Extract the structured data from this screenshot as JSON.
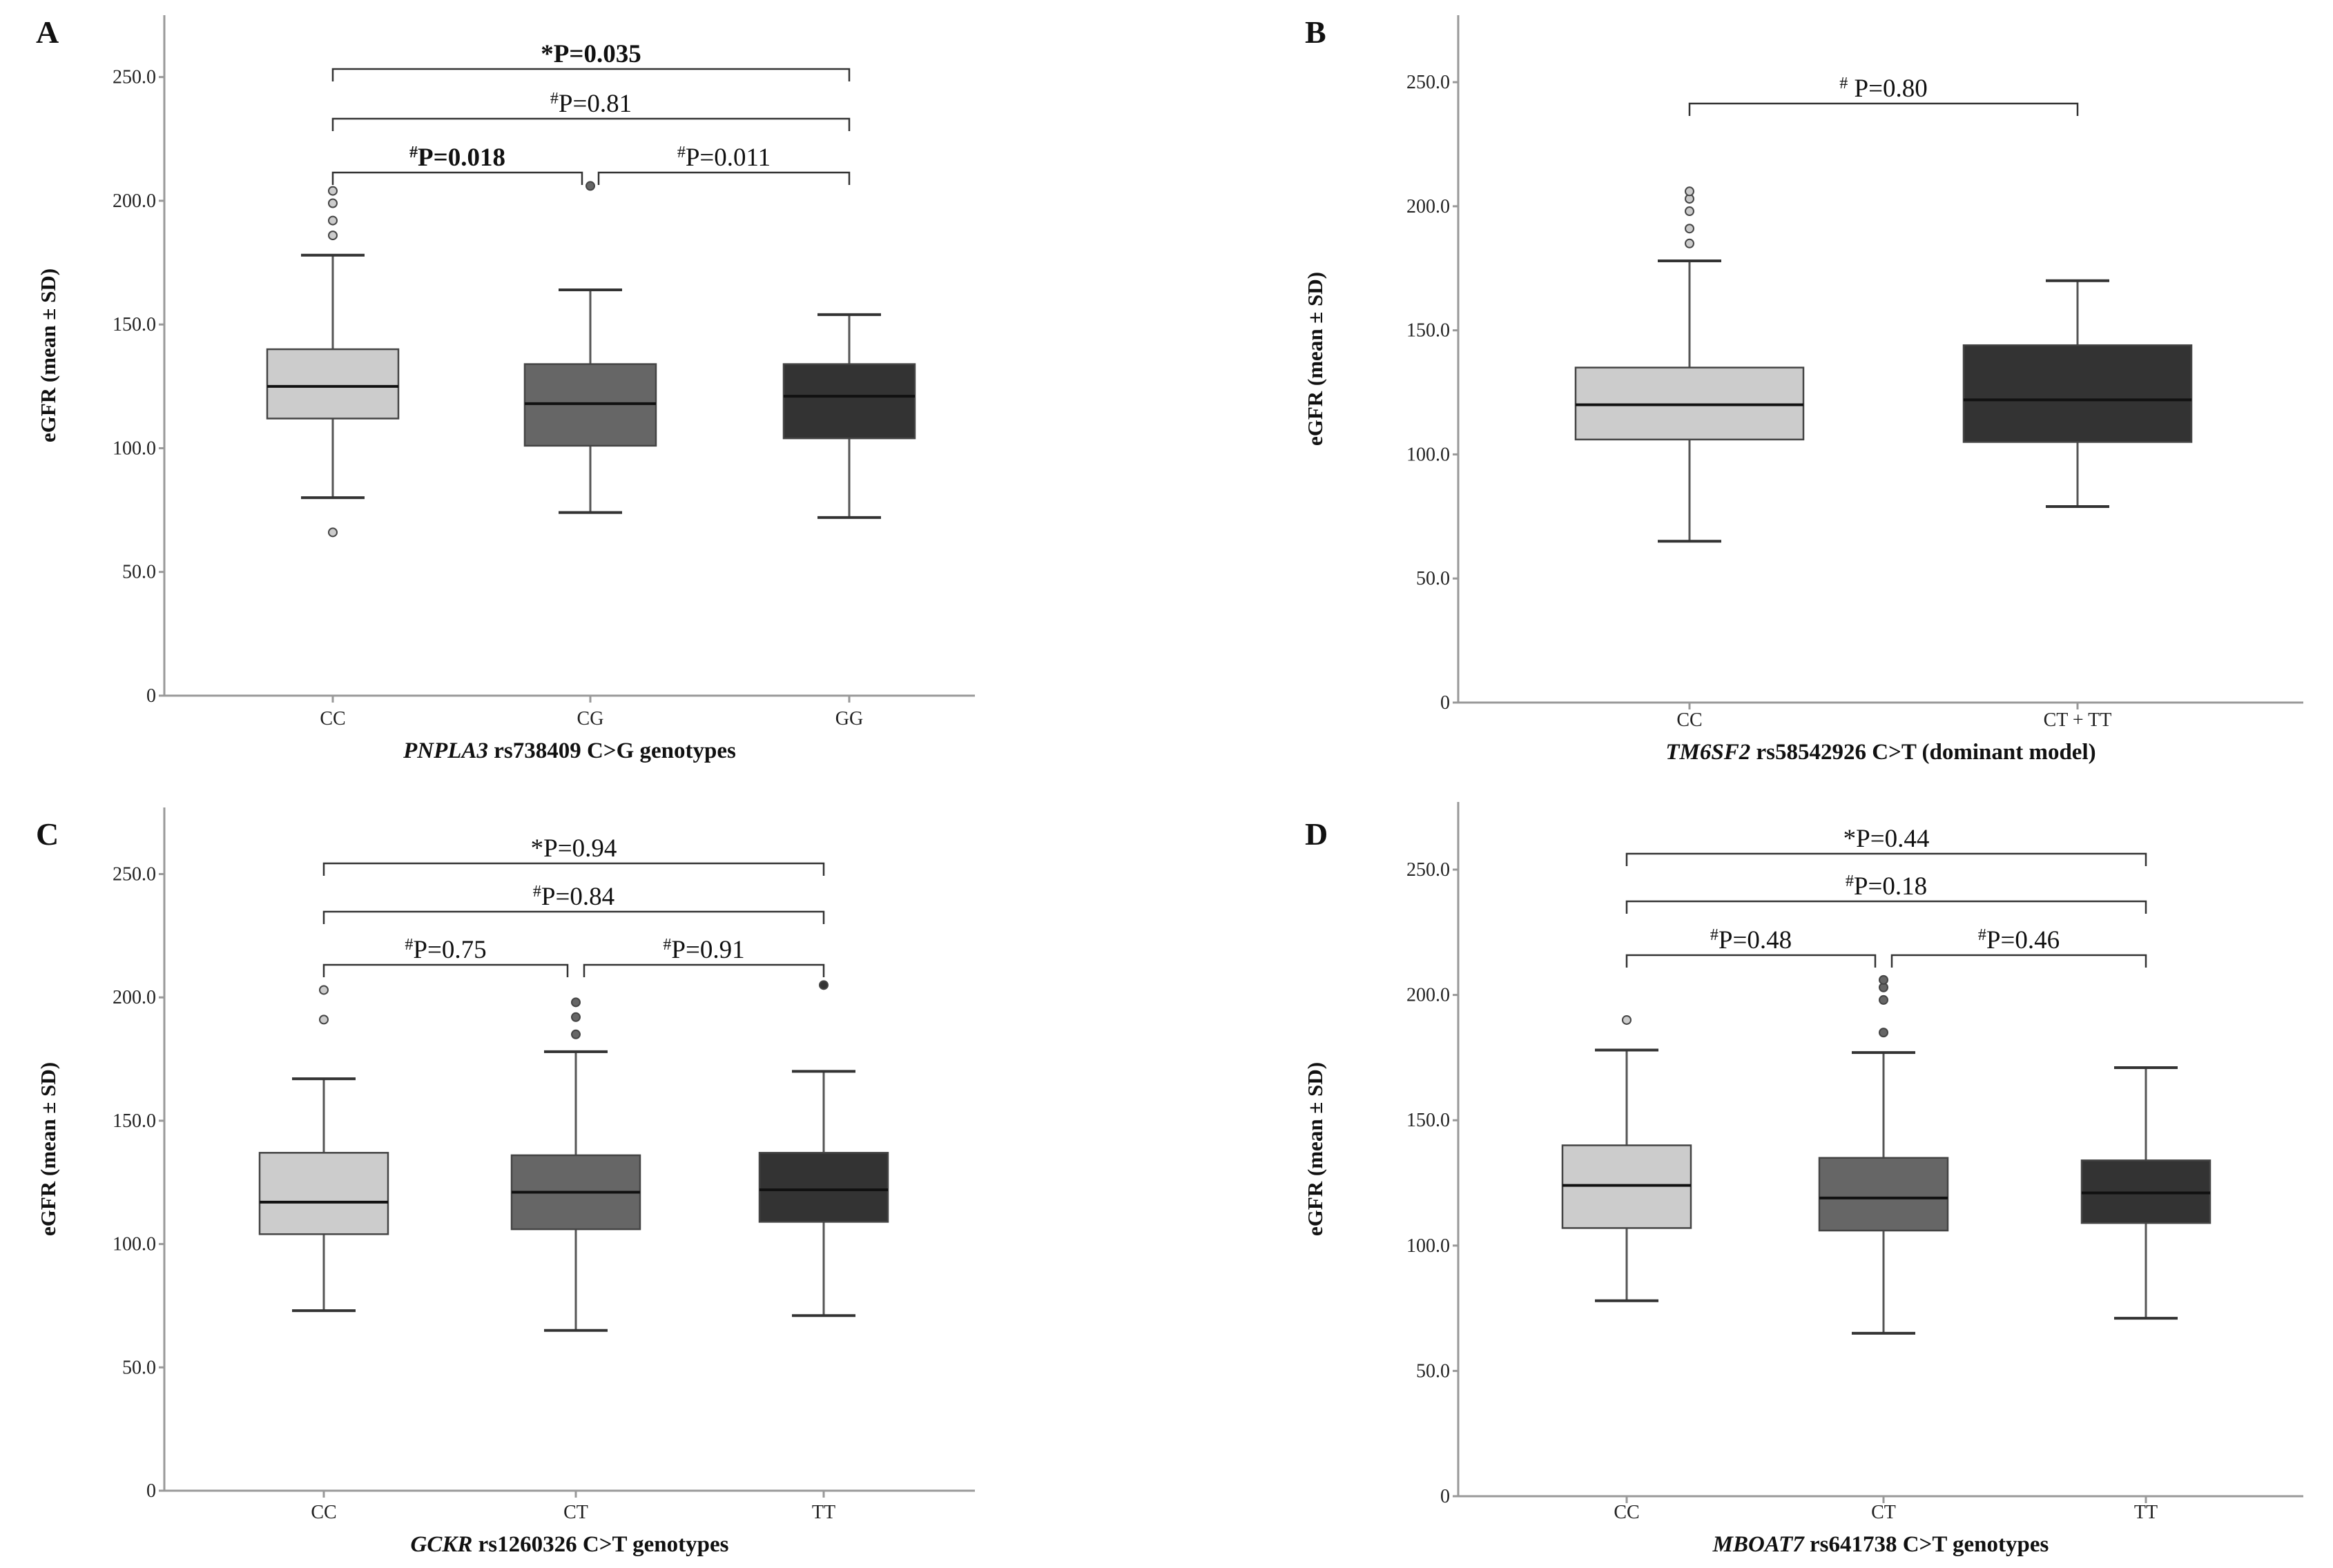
{
  "chart_data": [
    {
      "panel": "A",
      "type": "box",
      "xlabel_italic": "PNPLA3",
      "xlabel_rest": " rs738409 C>G genotypes",
      "ylabel": "eGFR (mean ± SD)",
      "ylim": [
        0,
        275
      ],
      "yticks": [
        0,
        50.0,
        100.0,
        150.0,
        200.0,
        250.0
      ],
      "ytick_labels": [
        "0",
        "50.0",
        "100.0",
        "150.0",
        "200.0",
        "250.0"
      ],
      "categories": [
        "CC",
        "CG",
        "GG"
      ],
      "boxes": [
        {
          "whisker_low": 80,
          "q1": 112,
          "median": 125,
          "q3": 140,
          "whisker_high": 178,
          "outliers": [
            66,
            186,
            192,
            199,
            204
          ],
          "color": "#cccccc"
        },
        {
          "whisker_low": 74,
          "q1": 101,
          "median": 118,
          "q3": 134,
          "whisker_high": 164,
          "outliers": [
            206
          ],
          "color": "#666666"
        },
        {
          "whisker_low": 72,
          "q1": 104,
          "median": 121,
          "q3": 134,
          "whisker_high": 154,
          "outliers": [],
          "color": "#333333"
        }
      ],
      "comparisons": [
        {
          "from": 0,
          "to": 2,
          "symbol": "*",
          "label": "P=0.035",
          "bold": true
        },
        {
          "from": 0,
          "to": 2,
          "symbol": "#",
          "label": "P=0.81",
          "bold": false
        },
        {
          "from": 0,
          "to": 1,
          "symbol": "#",
          "label": "P=0.018",
          "bold": true
        },
        {
          "from": 1,
          "to": 2,
          "symbol": "#",
          "label": "P=0.011",
          "bold": false
        }
      ]
    },
    {
      "panel": "B",
      "type": "box",
      "xlabel_italic": "TM6SF2",
      "xlabel_rest": " rs58542926  C>T (dominant model)",
      "ylabel": "eGFR (mean ± SD)",
      "ylim": [
        0,
        277
      ],
      "yticks": [
        0,
        50.0,
        100.0,
        150.0,
        200.0,
        250.0
      ],
      "ytick_labels": [
        "0",
        "50.0",
        "100.0",
        "150.0",
        "200.0",
        "250.0"
      ],
      "categories": [
        "CC",
        "CT + TT"
      ],
      "boxes": [
        {
          "whisker_low": 65,
          "q1": 106,
          "median": 120,
          "q3": 135,
          "whisker_high": 178,
          "outliers": [
            185,
            191,
            198,
            203,
            206
          ],
          "color": "#cccccc"
        },
        {
          "whisker_low": 79,
          "q1": 105,
          "median": 122,
          "q3": 144,
          "whisker_high": 170,
          "outliers": [],
          "color": "#333333"
        }
      ],
      "comparisons": [
        {
          "from": 0,
          "to": 1,
          "symbol": "#",
          "label": " P=0.80",
          "bold": false
        }
      ]
    },
    {
      "panel": "C",
      "type": "box",
      "xlabel_italic": "GCKR",
      "xlabel_rest": " rs1260326 C>T genotypes",
      "ylabel": "eGFR (mean ± SD)",
      "ylim": [
        0,
        277
      ],
      "yticks": [
        0,
        50.0,
        100.0,
        150.0,
        200.0,
        250.0
      ],
      "ytick_labels": [
        "0",
        "50.0",
        "100.0",
        "150.0",
        "200.0",
        "250.0"
      ],
      "categories": [
        "CC",
        "CT",
        "TT"
      ],
      "boxes": [
        {
          "whisker_low": 73,
          "q1": 104,
          "median": 117,
          "q3": 137,
          "whisker_high": 167,
          "outliers": [
            191,
            203
          ],
          "color": "#cccccc"
        },
        {
          "whisker_low": 65,
          "q1": 106,
          "median": 121,
          "q3": 136,
          "whisker_high": 178,
          "outliers": [
            185,
            192,
            198
          ],
          "color": "#666666"
        },
        {
          "whisker_low": 71,
          "q1": 109,
          "median": 122,
          "q3": 137,
          "whisker_high": 170,
          "outliers": [
            205
          ],
          "color": "#333333"
        }
      ],
      "comparisons": [
        {
          "from": 0,
          "to": 2,
          "symbol": "*",
          "label": "P=0.94",
          "bold": false
        },
        {
          "from": 0,
          "to": 2,
          "symbol": "#",
          "label": "P=0.84",
          "bold": false
        },
        {
          "from": 0,
          "to": 1,
          "symbol": "#",
          "label": "P=0.75",
          "bold": false
        },
        {
          "from": 1,
          "to": 2,
          "symbol": "#",
          "label": "P=0.91",
          "bold": false
        }
      ]
    },
    {
      "panel": "D",
      "type": "box",
      "xlabel_italic": "MBOAT7",
      "xlabel_rest": " rs641738 C>T genotypes",
      "ylabel": "eGFR (mean ± SD)",
      "ylim": [
        0,
        277
      ],
      "yticks": [
        0,
        50.0,
        100.0,
        150.0,
        200.0,
        250.0
      ],
      "ytick_labels": [
        "0",
        "50.0",
        "100.0",
        "150.0",
        "200.0",
        "250.0"
      ],
      "categories": [
        "CC",
        "CT",
        "TT"
      ],
      "boxes": [
        {
          "whisker_low": 78,
          "q1": 107,
          "median": 124,
          "q3": 140,
          "whisker_high": 178,
          "outliers": [
            190
          ],
          "color": "#cccccc"
        },
        {
          "whisker_low": 65,
          "q1": 106,
          "median": 119,
          "q3": 135,
          "whisker_high": 177,
          "outliers": [
            185,
            198,
            203,
            206
          ],
          "color": "#666666"
        },
        {
          "whisker_low": 71,
          "q1": 109,
          "median": 121,
          "q3": 134,
          "whisker_high": 171,
          "outliers": [],
          "color": "#333333"
        }
      ],
      "comparisons": [
        {
          "from": 0,
          "to": 2,
          "symbol": "*",
          "label": "P=0.44",
          "bold": false
        },
        {
          "from": 0,
          "to": 2,
          "symbol": "#",
          "label": "P=0.18",
          "bold": false
        },
        {
          "from": 0,
          "to": 1,
          "symbol": "#",
          "label": "P=0.48",
          "bold": false
        },
        {
          "from": 1,
          "to": 2,
          "symbol": "#",
          "label": "P=0.46",
          "bold": false
        }
      ]
    }
  ]
}
